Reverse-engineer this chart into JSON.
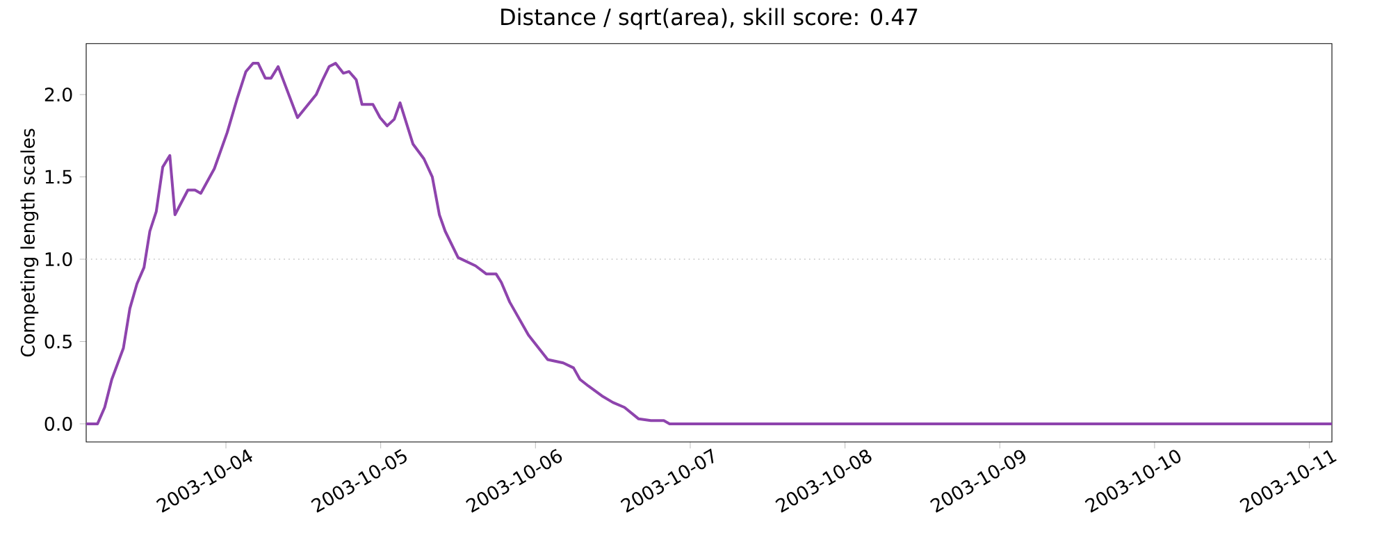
{
  "chart_data": {
    "type": "line",
    "title": "Distance / sqrt(area), skill score: 0.47",
    "ylabel": "Competing length scales",
    "x": [
      "2003-10-03T02:20",
      "2003-10-03T04:05",
      "2003-10-03T05:12",
      "2003-10-03T06:18",
      "2003-10-03T08:06",
      "2003-10-03T09:06",
      "2003-10-03T10:12",
      "2003-10-03T11:18",
      "2003-10-03T12:12",
      "2003-10-03T13:12",
      "2003-10-03T14:12",
      "2003-10-03T15:18",
      "2003-10-03T16:06",
      "2003-10-03T18:06",
      "2003-10-03T19:12",
      "2003-10-03T20:06",
      "2003-10-03T22:12",
      "2003-10-04T00:12",
      "2003-10-04T01:42",
      "2003-10-04T03:06",
      "2003-10-04T04:12",
      "2003-10-04T05:00",
      "2003-10-04T06:06",
      "2003-10-04T07:00",
      "2003-10-04T08:06",
      "2003-10-04T11:06",
      "2003-10-04T14:00",
      "2003-10-04T15:00",
      "2003-10-04T16:00",
      "2003-10-04T17:00",
      "2003-10-04T18:12",
      "2003-10-04T19:06",
      "2003-10-04T20:12",
      "2003-10-04T21:06",
      "2003-10-04T22:48",
      "2003-10-04T23:54",
      "2003-10-05T01:00",
      "2003-10-05T02:06",
      "2003-10-05T03:00",
      "2003-10-05T05:00",
      "2003-10-05T06:42",
      "2003-10-05T08:00",
      "2003-10-05T09:06",
      "2003-10-05T10:00",
      "2003-10-05T12:00",
      "2003-10-05T14:42",
      "2003-10-05T16:24",
      "2003-10-05T17:54",
      "2003-10-05T18:42",
      "2003-10-05T20:00",
      "2003-10-05T22:54",
      "2003-10-06T01:54",
      "2003-10-06T04:18",
      "2003-10-06T05:54",
      "2003-10-06T06:54",
      "2003-10-06T08:12",
      "2003-10-06T10:18",
      "2003-10-06T12:00",
      "2003-10-06T13:48",
      "2003-10-06T16:00",
      "2003-10-06T17:54",
      "2003-10-06T19:54",
      "2003-10-06T20:48",
      "2003-10-11T03:30"
    ],
    "series": [
      {
        "color": "#8e44ad",
        "values": [
          0.0,
          0.0,
          0.1,
          0.27,
          0.46,
          0.7,
          0.85,
          0.95,
          1.17,
          1.29,
          1.56,
          1.63,
          1.27,
          1.42,
          1.42,
          1.4,
          1.55,
          1.77,
          1.97,
          2.14,
          2.19,
          2.19,
          2.1,
          2.1,
          2.17,
          1.86,
          2.0,
          2.09,
          2.17,
          2.19,
          2.13,
          2.14,
          2.09,
          1.94,
          1.94,
          1.86,
          1.81,
          1.85,
          1.95,
          1.7,
          1.61,
          1.5,
          1.27,
          1.17,
          1.01,
          0.96,
          0.91,
          0.91,
          0.86,
          0.74,
          0.54,
          0.39,
          0.37,
          0.34,
          0.27,
          0.23,
          0.17,
          0.13,
          0.1,
          0.03,
          0.02,
          0.02,
          0.0,
          0.0
        ]
      }
    ],
    "xlim": [
      "2003-10-03T02:20",
      "2003-10-11T03:30"
    ],
    "xticks": [
      "2003-10-04",
      "2003-10-05",
      "2003-10-06",
      "2003-10-07",
      "2003-10-08",
      "2003-10-09",
      "2003-10-10",
      "2003-10-11"
    ],
    "ylim": [
      -0.11,
      2.31
    ],
    "yticks": [
      {
        "value": 0.0,
        "label": "0.0"
      },
      {
        "value": 0.5,
        "label": "0.5"
      },
      {
        "value": 1.0,
        "label": "1.0"
      },
      {
        "value": 1.5,
        "label": "1.5"
      },
      {
        "value": 2.0,
        "label": "2.0"
      }
    ],
    "ref_lines": [
      {
        "axis": "y",
        "value": 1.0,
        "color": "#c0c0c0",
        "line_style": "dotted"
      }
    ],
    "grid": false,
    "marker": "none",
    "line_style": "solid"
  }
}
